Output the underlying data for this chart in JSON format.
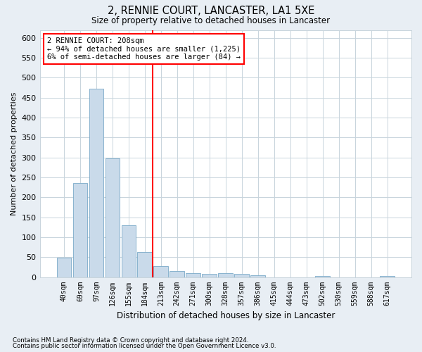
{
  "title": "2, RENNIE COURT, LANCASTER, LA1 5XE",
  "subtitle": "Size of property relative to detached houses in Lancaster",
  "xlabel": "Distribution of detached houses by size in Lancaster",
  "ylabel": "Number of detached properties",
  "footnote1": "Contains HM Land Registry data © Crown copyright and database right 2024.",
  "footnote2": "Contains public sector information licensed under the Open Government Licence v3.0.",
  "bar_labels": [
    "40sqm",
    "69sqm",
    "97sqm",
    "126sqm",
    "155sqm",
    "184sqm",
    "213sqm",
    "242sqm",
    "271sqm",
    "300sqm",
    "328sqm",
    "357sqm",
    "386sqm",
    "415sqm",
    "444sqm",
    "473sqm",
    "502sqm",
    "530sqm",
    "559sqm",
    "588sqm",
    "617sqm"
  ],
  "bar_values": [
    49,
    236,
    473,
    298,
    130,
    63,
    28,
    15,
    10,
    8,
    9,
    8,
    4,
    0,
    0,
    0,
    3,
    0,
    0,
    0,
    2
  ],
  "bar_color": "#c9daea",
  "bar_edge_color": "#7aaac8",
  "vline_x_index": 6,
  "vline_color": "red",
  "annotation_text": "2 RENNIE COURT: 208sqm\n← 94% of detached houses are smaller (1,225)\n6% of semi-detached houses are larger (84) →",
  "annotation_box_color": "white",
  "annotation_box_edge": "red",
  "ylim": [
    0,
    620
  ],
  "yticks": [
    0,
    50,
    100,
    150,
    200,
    250,
    300,
    350,
    400,
    450,
    500,
    550,
    600
  ],
  "bg_color": "#e8eef4",
  "plot_bg_color": "#ffffff",
  "grid_color": "#c8d4dc"
}
